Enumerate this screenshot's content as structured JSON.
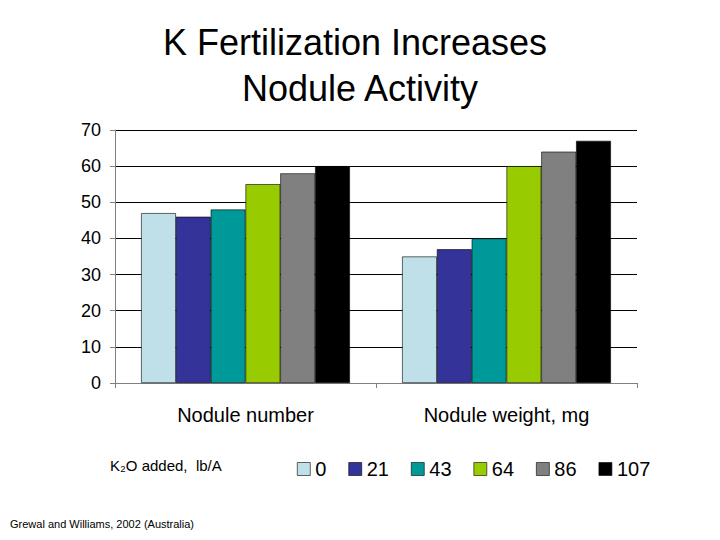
{
  "chart_data": {
    "type": "bar",
    "title": "K Fertilization Increases Nodule Activity",
    "categories": [
      "Nodule number",
      "Nodule weight, mg"
    ],
    "series": [
      {
        "name": "0",
        "color": "#bfe0e8",
        "values": [
          47,
          35
        ]
      },
      {
        "name": "21",
        "color": "#333399",
        "values": [
          46,
          37
        ]
      },
      {
        "name": "43",
        "color": "#009999",
        "values": [
          48,
          40
        ]
      },
      {
        "name": "64",
        "color": "#99cc00",
        "values": [
          55,
          60
        ]
      },
      {
        "name": "86",
        "color": "#808080",
        "values": [
          58,
          64
        ]
      },
      {
        "name": "107",
        "color": "#000000",
        "values": [
          60,
          67
        ]
      }
    ],
    "ylim": [
      0,
      70
    ],
    "yticks": [
      0,
      10,
      20,
      30,
      40,
      50,
      60,
      70
    ],
    "grid": true,
    "legend": "bottom",
    "legend_title": "K₂O added,  lb/A",
    "source": "Grewal and Williams, 2002 (Australia)"
  }
}
